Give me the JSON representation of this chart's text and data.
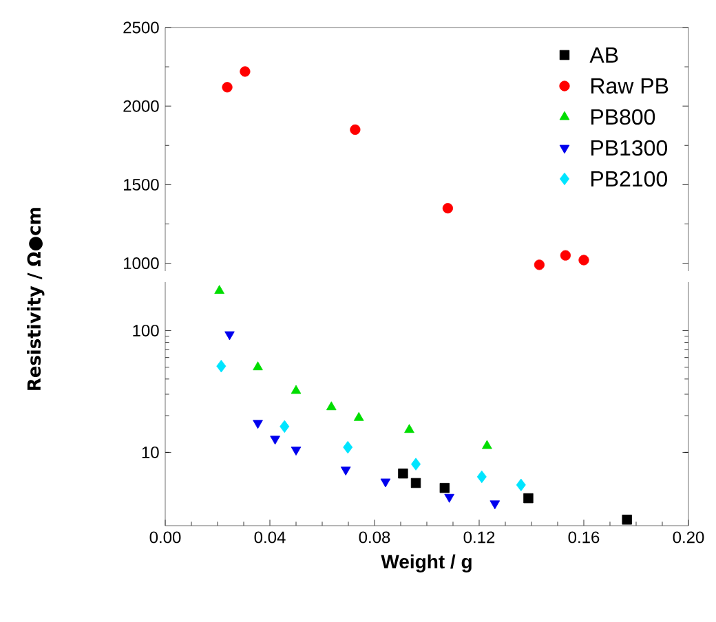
{
  "chart_data": [
    {
      "type": "scatter",
      "xlim": [
        0,
        0.2
      ],
      "ylim": [
        950,
        2500
      ],
      "yticks": [
        1000,
        1500,
        2000,
        2500
      ],
      "tick_labels": "y",
      "legend": "top right",
      "series": [
        {
          "name": "Raw PB",
          "color": "#ff0000",
          "marker": "circle",
          "x": [
            0.0237,
            0.0305,
            0.0726,
            0.108,
            0.143,
            0.153,
            0.16
          ],
          "values": [
            2120,
            2220,
            1850,
            1350,
            990,
            1050,
            1020
          ]
        }
      ]
    },
    {
      "type": "scatter",
      "xlabel": "Weight / g",
      "ylabel": "Resistivity / Ω●cm",
      "xlim": [
        0,
        0.2
      ],
      "ylim": [
        2.5,
        250
      ],
      "log": "y",
      "legend": "top right",
      "xticks": [
        {
          "value": 0,
          "label": "0.00"
        },
        {
          "value": 0.04,
          "label": "0.04"
        },
        {
          "value": 0.08,
          "label": "0.08"
        },
        {
          "value": 0.12,
          "label": "0.12"
        },
        {
          "value": 0.16,
          "label": "0.16"
        },
        {
          "value": 0.2,
          "label": "0.20"
        }
      ],
      "yticks": [
        10,
        100
      ],
      "series": [
        {
          "name": "AB",
          "color": "#000000",
          "marker": "square",
          "x": [
            0.0909,
            0.0958,
            0.1068,
            0.1388,
            0.1765
          ],
          "values": [
            6.7,
            5.6,
            5.1,
            4.2,
            2.8
          ]
        },
        {
          "name": "PB800",
          "color": "#00dd00",
          "marker": "triangle",
          "x": [
            0.0207,
            0.0354,
            0.05,
            0.0635,
            0.074,
            0.0933,
            0.123
          ],
          "values": [
            212,
            50,
            32,
            23.5,
            19.2,
            15.3,
            11.3
          ]
        },
        {
          "name": "PB1300",
          "color": "#0000ee",
          "marker": "triangle-down",
          "x": [
            0.0246,
            0.0354,
            0.042,
            0.05,
            0.069,
            0.0842,
            0.1086,
            0.126
          ],
          "values": [
            93,
            17.4,
            12.9,
            10.5,
            7.2,
            5.75,
            4.3,
            3.8
          ]
        },
        {
          "name": "PB2100",
          "color": "#00e5ff",
          "marker": "diamond",
          "x": [
            0.0214,
            0.0456,
            0.0698,
            0.0958,
            0.121,
            0.136
          ],
          "values": [
            51,
            16.3,
            11,
            8.0,
            6.3,
            5.4
          ]
        }
      ]
    }
  ]
}
